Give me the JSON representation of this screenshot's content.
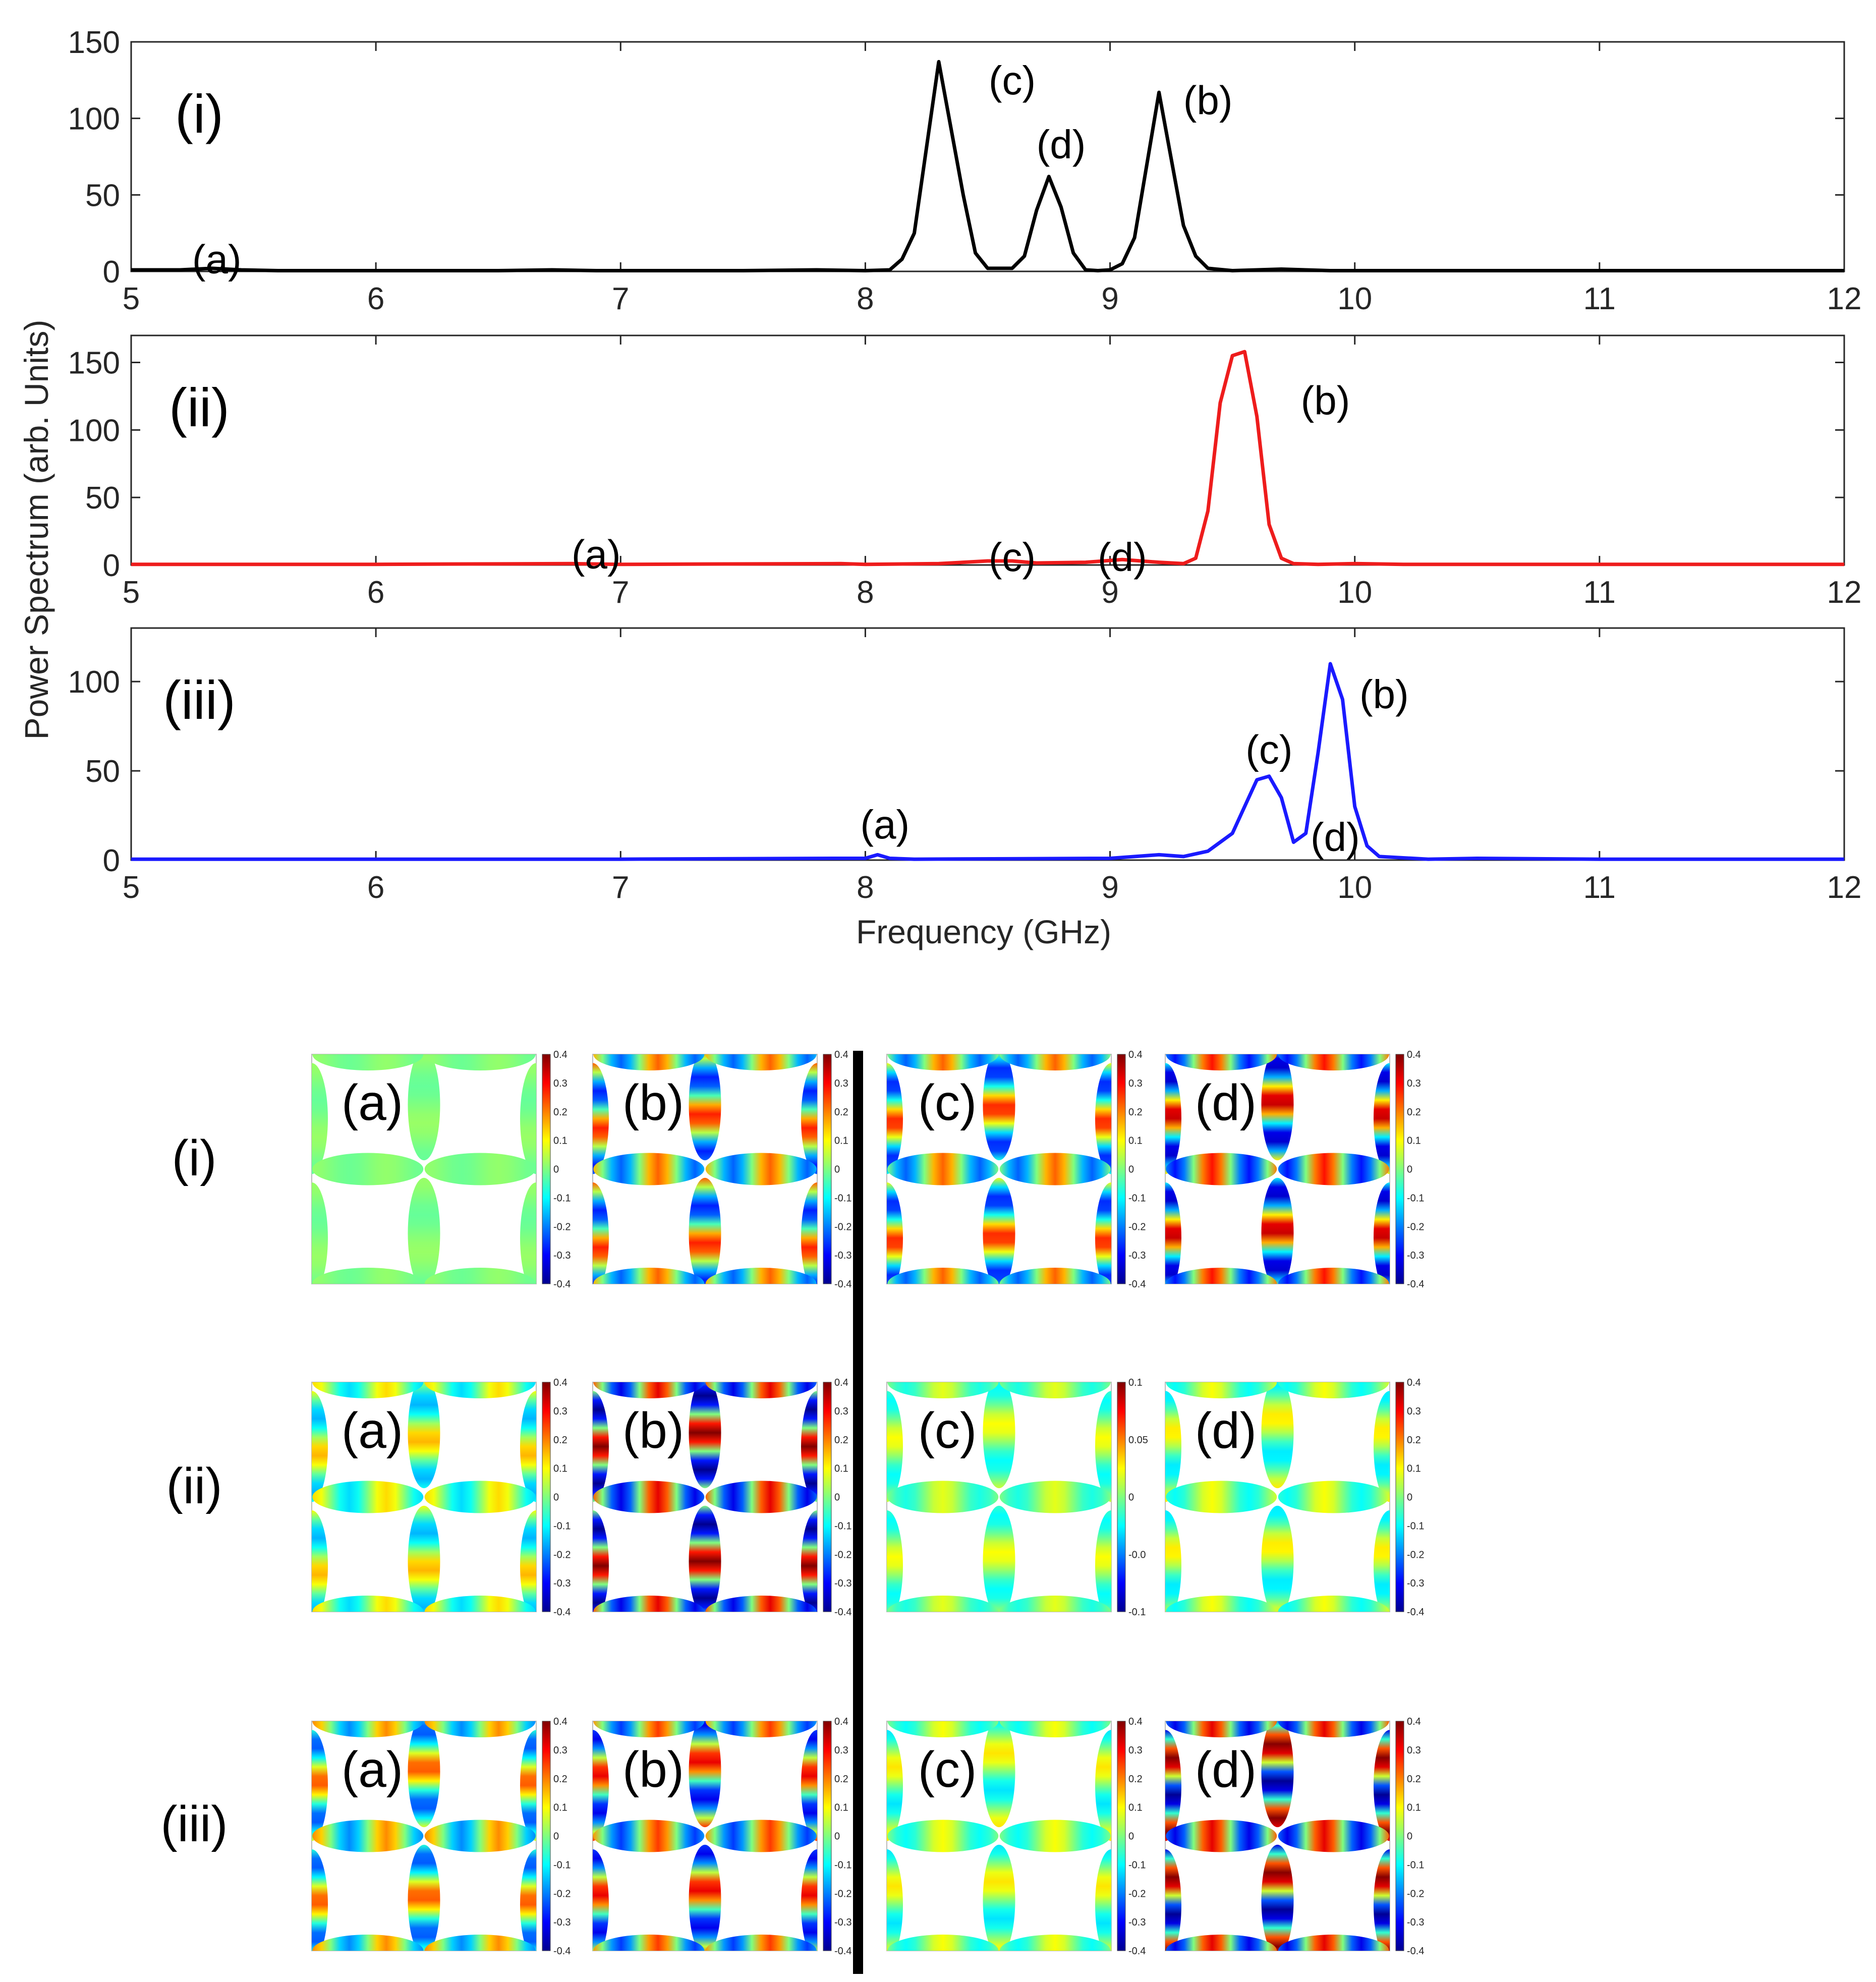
{
  "chart_data": {
    "type": "line",
    "ylabel": "Power Spectrum (arb. Units)",
    "xlabel": "Frequency (GHz)",
    "xlim": [
      5,
      12
    ],
    "xticks": [
      "5",
      "6",
      "7",
      "8",
      "9",
      "10",
      "11",
      "12"
    ],
    "panels": [
      {
        "label": "(i)",
        "color": "#000000",
        "ylim": [
          0,
          150
        ],
        "yticks": [
          "0",
          "50",
          "100",
          "150"
        ],
        "x": [
          5.0,
          5.2,
          5.33,
          5.45,
          5.6,
          6.0,
          6.5,
          6.72,
          6.9,
          7.5,
          7.8,
          8.0,
          8.1,
          8.15,
          8.2,
          8.3,
          8.4,
          8.45,
          8.5,
          8.6,
          8.65,
          8.7,
          8.75,
          8.8,
          8.85,
          8.9,
          8.95,
          9.0,
          9.05,
          9.1,
          9.2,
          9.3,
          9.35,
          9.4,
          9.5,
          9.7,
          9.9,
          10.5,
          11.0,
          12.0
        ],
        "values": [
          1,
          1,
          2,
          1,
          0.5,
          0.5,
          0.5,
          1,
          0.5,
          0.5,
          1,
          0.5,
          1,
          8,
          25,
          137,
          50,
          12,
          2,
          2,
          10,
          40,
          62,
          42,
          12,
          1,
          0.5,
          1,
          5,
          22,
          117,
          30,
          10,
          2,
          0.5,
          1.5,
          0.5,
          0.5,
          0.5,
          0.5
        ],
        "annotations": [
          {
            "text": "(a)",
            "x": 5.35,
            "y": 8
          },
          {
            "text": "(c)",
            "x": 8.6,
            "y": 125
          },
          {
            "text": "(d)",
            "x": 8.8,
            "y": 83
          },
          {
            "text": "(b)",
            "x": 9.4,
            "y": 112
          }
        ]
      },
      {
        "label": "(ii)",
        "color": "#ee1c1c",
        "ylim": [
          0,
          170
        ],
        "yticks": [
          "0",
          "50",
          "100",
          "150"
        ],
        "x": [
          5.0,
          6.0,
          6.8,
          7.0,
          7.9,
          8.0,
          8.3,
          8.5,
          8.6,
          8.7,
          8.9,
          9.05,
          9.2,
          9.3,
          9.35,
          9.4,
          9.45,
          9.5,
          9.55,
          9.6,
          9.65,
          9.7,
          9.75,
          9.85,
          10.0,
          10.2,
          11.0,
          12.0
        ],
        "values": [
          0.5,
          0.5,
          1,
          0.5,
          1,
          0.5,
          1,
          3,
          3,
          1.5,
          2,
          4,
          2,
          1,
          5,
          40,
          120,
          155,
          158,
          110,
          30,
          5,
          1,
          0.5,
          1,
          0.5,
          0.5,
          0.5
        ],
        "annotations": [
          {
            "text": "(a)",
            "x": 6.9,
            "y": 8
          },
          {
            "text": "(c)",
            "x": 8.6,
            "y": 6
          },
          {
            "text": "(d)",
            "x": 9.05,
            "y": 6
          },
          {
            "text": "(b)",
            "x": 9.88,
            "y": 122
          }
        ]
      },
      {
        "label": "(iii)",
        "color": "#1a1aff",
        "ylim": [
          0,
          130
        ],
        "yticks": [
          "0",
          "50",
          "100"
        ],
        "x": [
          5.0,
          7.0,
          7.9,
          8.0,
          8.05,
          8.1,
          8.2,
          9.0,
          9.2,
          9.3,
          9.4,
          9.5,
          9.55,
          9.6,
          9.65,
          9.7,
          9.75,
          9.8,
          9.85,
          9.9,
          9.95,
          10.0,
          10.05,
          10.1,
          10.3,
          10.5,
          11.0,
          12.0
        ],
        "values": [
          0.5,
          0.5,
          1,
          1,
          3,
          1,
          0.5,
          1,
          3,
          2,
          5,
          15,
          30,
          45,
          47,
          35,
          10,
          15,
          60,
          110,
          90,
          30,
          8,
          2,
          0.5,
          1,
          0.5,
          0.5
        ],
        "annotations": [
          {
            "text": "(a)",
            "x": 8.08,
            "y": 20
          },
          {
            "text": "(c)",
            "x": 9.65,
            "y": 62
          },
          {
            "text": "(d)",
            "x": 9.92,
            "y": 13
          },
          {
            "text": "(b)",
            "x": 10.12,
            "y": 93
          }
        ]
      }
    ]
  },
  "maps": {
    "rows": [
      "(i)",
      "(ii)",
      "(iii)"
    ],
    "cells": [
      "(a)",
      "(b)",
      "(c)",
      "(d)"
    ],
    "colorbar_ticks_default": [
      "0.4",
      "0.3",
      "0.2",
      "0.1",
      "0",
      "-0.1",
      "-0.2",
      "-0.3",
      "-0.4"
    ],
    "colorbar_ticks_ii_c": [
      "0.1",
      "0.05",
      "0",
      "-0.0",
      "-0.1"
    ],
    "intensity": [
      [
        0.05,
        0.7,
        0.7,
        0.9
      ],
      [
        0.4,
        1.0,
        0.25,
        0.3
      ],
      [
        0.6,
        0.8,
        0.3,
        1.0
      ]
    ]
  }
}
